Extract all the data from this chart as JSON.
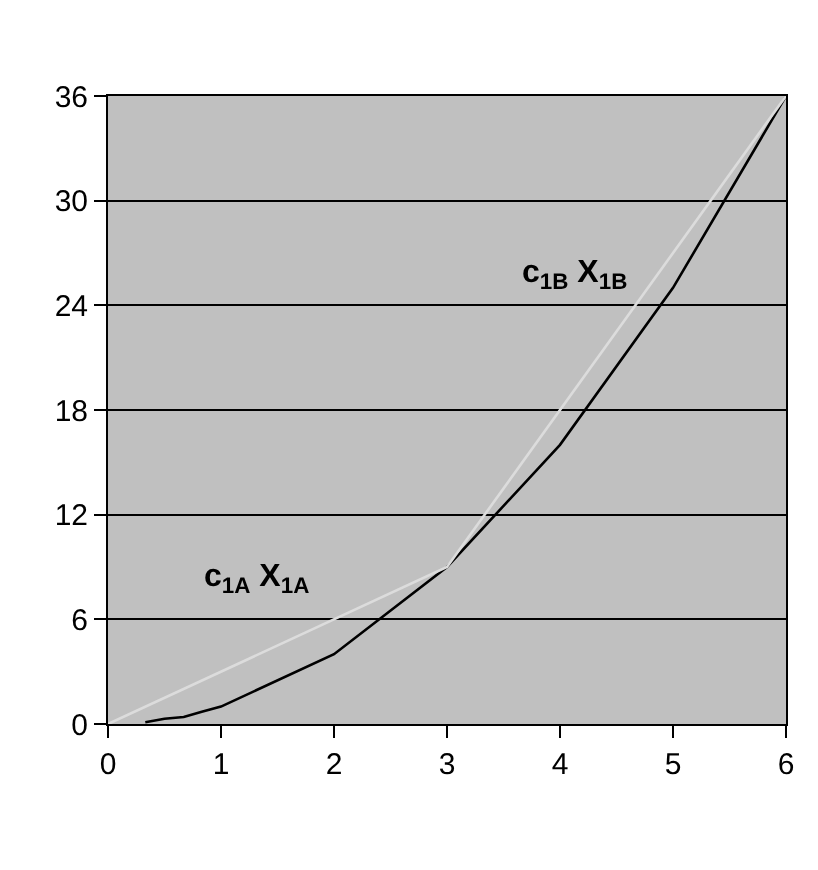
{
  "chart_data": {
    "type": "line",
    "series": [
      {
        "color": "#000000",
        "x": [
          0.33,
          0.5,
          0.67,
          0.83,
          1,
          2,
          3,
          4,
          5,
          6
        ],
        "values": [
          0.1,
          0.3,
          0.4,
          0.7,
          1,
          4,
          9,
          16,
          25,
          36
        ]
      },
      {
        "color": "#dcdcdc",
        "x": [
          0,
          3,
          6
        ],
        "values": [
          0,
          9,
          36
        ]
      }
    ],
    "xlim": [
      0,
      6
    ],
    "xticks": [
      0,
      1,
      2,
      3,
      4,
      5,
      6
    ],
    "ylim": [
      0,
      36
    ],
    "yticks": [
      0,
      6,
      12,
      18,
      24,
      30,
      36
    ],
    "grid": "y",
    "marker": "none",
    "line_style": "solid",
    "annotations": [
      "c$_{1A}$ X$_{1A}$",
      "c$_{1B}$ X$_{1B}$"
    ]
  }
}
